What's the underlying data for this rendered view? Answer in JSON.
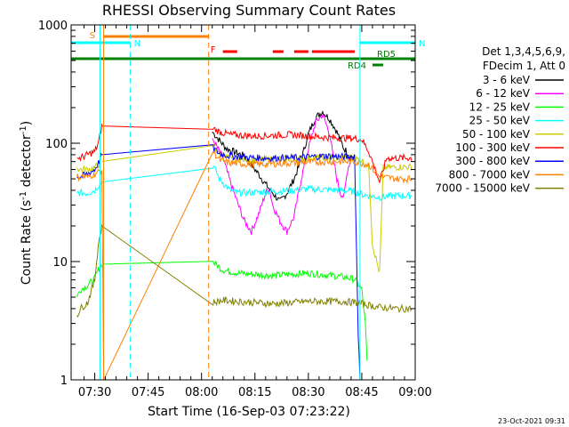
{
  "chart_data": {
    "type": "line",
    "title": "RHESSI Observing Summary Count Rates",
    "xlabel": "Start Time (16-Sep-03 07:23:22)",
    "ylabel_main": "Count Rate (s",
    "ylabel_sup1": "-1",
    "ylabel_mid": " detector",
    "ylabel_sup2": "-1",
    "ylabel_end": ")",
    "date_stamp": "23-Oct-2021 09:31",
    "x_range_min": [
      23.37,
      120
    ],
    "y_scale": "log",
    "ylim": [
      1,
      1000
    ],
    "x_ticks": [
      {
        "min": 30,
        "label": "07:30"
      },
      {
        "min": 45,
        "label": "07:45"
      },
      {
        "min": 60,
        "label": "08:00"
      },
      {
        "min": 75,
        "label": "08:15"
      },
      {
        "min": 90,
        "label": "08:30"
      },
      {
        "min": 105,
        "label": "08:45"
      },
      {
        "min": 120,
        "label": "09:00"
      }
    ],
    "y_ticks": [
      {
        "value": 1,
        "label": "1"
      },
      {
        "value": 10,
        "label": "10"
      },
      {
        "value": 100,
        "label": "100"
      },
      {
        "value": 1000,
        "label": "1000"
      }
    ],
    "legend_header": [
      "Det 1,3,4,5,6,9,",
      "FDecim 1, Att 0"
    ],
    "series": [
      {
        "name": "3 - 6 keV",
        "color": "#000000",
        "points": [
          [
            63,
            125
          ],
          [
            67,
            90
          ],
          [
            72,
            78
          ],
          [
            76,
            55
          ],
          [
            78,
            45
          ],
          [
            80,
            38
          ],
          [
            82,
            32
          ],
          [
            84,
            38
          ],
          [
            86,
            50
          ],
          [
            88,
            72
          ],
          [
            90,
            120
          ],
          [
            92,
            165
          ],
          [
            94,
            185
          ],
          [
            96,
            160
          ],
          [
            98,
            125
          ],
          [
            100,
            90
          ],
          [
            102,
            78
          ],
          [
            103,
            76
          ]
        ]
      },
      {
        "name": "6 - 12 keV",
        "color": "#ff00ff",
        "points": [
          [
            63,
            110
          ],
          [
            66,
            75
          ],
          [
            68,
            48
          ],
          [
            70,
            32
          ],
          [
            72,
            22
          ],
          [
            74,
            18
          ],
          [
            76,
            25
          ],
          [
            78,
            38
          ],
          [
            79,
            42
          ],
          [
            80,
            30
          ],
          [
            82,
            22
          ],
          [
            84,
            18
          ],
          [
            86,
            24
          ],
          [
            88,
            50
          ],
          [
            90,
            90
          ],
          [
            92,
            150
          ],
          [
            94,
            175
          ],
          [
            96,
            120
          ],
          [
            97,
            75
          ],
          [
            98,
            50
          ],
          [
            99,
            38
          ],
          [
            100,
            35
          ],
          [
            101,
            60
          ],
          [
            102,
            75
          ],
          [
            103,
            74
          ]
        ]
      },
      {
        "name": "12 - 25 keV",
        "color": "#00ff00",
        "points": [
          [
            25,
            5
          ],
          [
            26,
            5.8
          ],
          [
            28,
            6.3
          ],
          [
            30,
            7.2
          ],
          [
            31,
            8.5
          ],
          [
            32,
            9.5
          ],
          [
            63,
            10
          ],
          [
            66,
            8.5
          ],
          [
            70,
            8
          ],
          [
            80,
            7.6
          ],
          [
            90,
            8
          ],
          [
            100,
            7.4
          ],
          [
            103,
            7.1
          ],
          [
            105,
            5.8
          ],
          [
            106,
            3
          ],
          [
            106.5,
            1.4
          ]
        ]
      },
      {
        "name": "25 - 50 keV",
        "color": "#00ffff",
        "points": [
          [
            25,
            38
          ],
          [
            26,
            38
          ],
          [
            28,
            38
          ],
          [
            30,
            40
          ],
          [
            31,
            44
          ],
          [
            32,
            47
          ],
          [
            63,
            68
          ],
          [
            65,
            50
          ],
          [
            68,
            40
          ],
          [
            70,
            38
          ],
          [
            80,
            39
          ],
          [
            90,
            41
          ],
          [
            100,
            40
          ],
          [
            103,
            39
          ],
          [
            105,
            37
          ],
          [
            110,
            35
          ],
          [
            115,
            36
          ],
          [
            119,
            36
          ]
        ]
      },
      {
        "name": "50 - 100 keV",
        "color": "#cccc00",
        "points": [
          [
            25,
            62
          ],
          [
            26,
            60
          ],
          [
            28,
            60
          ],
          [
            30,
            62
          ],
          [
            31,
            66
          ],
          [
            32,
            70
          ],
          [
            63,
            100
          ],
          [
            65,
            80
          ],
          [
            68,
            74
          ],
          [
            75,
            72
          ],
          [
            85,
            74
          ],
          [
            95,
            76
          ],
          [
            103,
            74
          ],
          [
            105,
            72
          ],
          [
            107,
            62
          ],
          [
            108,
            14
          ],
          [
            110,
            8
          ],
          [
            111,
            62
          ],
          [
            115,
            63
          ],
          [
            119,
            63
          ]
        ]
      },
      {
        "name": "100 - 300 keV",
        "color": "#ff0000",
        "points": [
          [
            25,
            75
          ],
          [
            26,
            75
          ],
          [
            28,
            80
          ],
          [
            30,
            85
          ],
          [
            31,
            100
          ],
          [
            32,
            140
          ],
          [
            63,
            135
          ],
          [
            65,
            125
          ],
          [
            68,
            118
          ],
          [
            75,
            115
          ],
          [
            85,
            118
          ],
          [
            95,
            112
          ],
          [
            103,
            110
          ],
          [
            105,
            108
          ],
          [
            107,
            85
          ],
          [
            110,
            47
          ],
          [
            112,
            75
          ],
          [
            119,
            75
          ]
        ]
      },
      {
        "name": "300 - 800 keV",
        "color": "#0000ff",
        "points": [
          [
            25,
            52
          ],
          [
            26,
            52
          ],
          [
            28,
            55
          ],
          [
            30,
            60
          ],
          [
            31,
            68
          ],
          [
            32,
            80
          ],
          [
            63,
            92
          ],
          [
            65,
            82
          ],
          [
            68,
            78
          ],
          [
            75,
            75
          ],
          [
            85,
            75
          ],
          [
            95,
            78
          ],
          [
            103,
            76
          ],
          [
            104,
            2.5
          ],
          [
            104.5,
            1
          ]
        ]
      },
      {
        "name": "800 - 7000 keV",
        "color": "#ff8000",
        "points": [
          [
            25,
            52
          ],
          [
            26,
            52
          ],
          [
            28,
            52
          ],
          [
            30,
            55
          ],
          [
            31,
            57
          ],
          [
            32,
            60
          ],
          [
            32.5,
            1
          ],
          [
            63,
            88
          ],
          [
            65,
            72
          ],
          [
            68,
            68
          ],
          [
            75,
            66
          ],
          [
            85,
            68
          ],
          [
            95,
            70
          ],
          [
            103,
            70
          ],
          [
            107,
            66
          ],
          [
            110,
            52
          ],
          [
            115,
            50
          ],
          [
            119,
            50
          ]
        ]
      },
      {
        "name": "7000 - 15000 keV",
        "color": "#808000",
        "points": [
          [
            25,
            3.5
          ],
          [
            26,
            4
          ],
          [
            28,
            4.5
          ],
          [
            30,
            7
          ],
          [
            31,
            14
          ],
          [
            32,
            20
          ],
          [
            63,
            4.5
          ],
          [
            66,
            4.7
          ],
          [
            70,
            4.6
          ],
          [
            80,
            4.4
          ],
          [
            90,
            4.6
          ],
          [
            100,
            4.6
          ],
          [
            103,
            4.5
          ],
          [
            105,
            4.4
          ],
          [
            110,
            4.1
          ],
          [
            115,
            4
          ],
          [
            119,
            4
          ]
        ]
      }
    ],
    "flag_bars": [
      {
        "label": "S",
        "color": "#ff8000",
        "x_start": 32.5,
        "x_end": 62,
        "level": "S"
      },
      {
        "label": "N",
        "color": "#00ffff",
        "x_start": 23.37,
        "x_end": 40,
        "level": "N"
      },
      {
        "label": "N",
        "color": "#00ffff",
        "x_start": 104.5,
        "x_end": 120,
        "level": "N"
      },
      {
        "label": "F",
        "color": "#ff0000",
        "level": "F",
        "segments": [
          [
            66,
            70
          ],
          [
            80,
            83
          ],
          [
            86,
            90
          ],
          [
            91,
            103
          ]
        ]
      },
      {
        "label": "RD4",
        "color": "#008000",
        "x_start": 108,
        "x_end": 111,
        "level": "RD4"
      },
      {
        "label": "RD5",
        "color": "#008000",
        "x_start": 23.37,
        "x_end": 120,
        "level": "RD5"
      }
    ],
    "vlines": [
      {
        "min": 31.5,
        "color": "#00ffff",
        "style": "solid"
      },
      {
        "min": 32.5,
        "color": "#ff8000",
        "style": "solid"
      },
      {
        "min": 40,
        "color": "#00ffff",
        "style": "dashed"
      },
      {
        "min": 62,
        "color": "#ff8000",
        "style": "dashed"
      },
      {
        "min": 104.5,
        "color": "#00ffff",
        "style": "solid"
      },
      {
        "min": 120,
        "color": "#00ffff",
        "style": "dashed"
      }
    ]
  }
}
